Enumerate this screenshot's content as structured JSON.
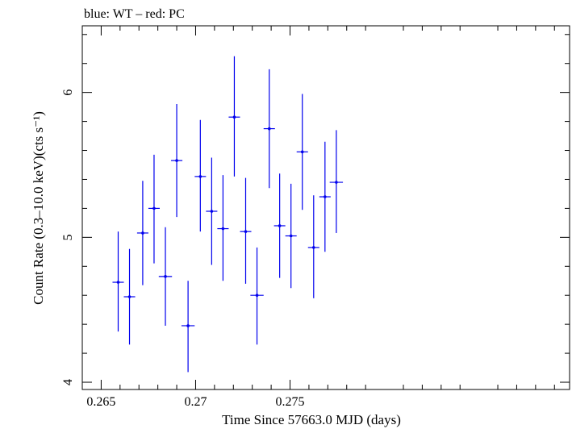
{
  "chart_data": {
    "type": "scatter",
    "title": "blue: WT – red: PC",
    "xlabel": "Time Since 57663.0 MJD (days)",
    "ylabel": "Count Rate (0.3–10.0 keV)(cts s⁻¹)",
    "xlim": [
      0.264,
      0.2898
    ],
    "ylim": [
      3.95,
      6.46
    ],
    "x_ticks": [
      0.265,
      0.27,
      0.275
    ],
    "x_tick_labels": [
      "0.265",
      "0.27",
      "0.275"
    ],
    "y_ticks": [
      4,
      5,
      6
    ],
    "y_tick_labels": [
      "4",
      "5",
      "6"
    ],
    "grid": false,
    "series": [
      {
        "name": "WT",
        "color": "#0000ee",
        "points": [
          {
            "x": 0.2659,
            "y": 4.69,
            "xerr": 0.0003,
            "ylo": 4.35,
            "yhi": 5.04
          },
          {
            "x": 0.2665,
            "y": 4.59,
            "xerr": 0.0003,
            "ylo": 4.26,
            "yhi": 4.92
          },
          {
            "x": 0.2672,
            "y": 5.03,
            "xerr": 0.0003,
            "ylo": 4.67,
            "yhi": 5.39
          },
          {
            "x": 0.2678,
            "y": 5.2,
            "xerr": 0.0003,
            "ylo": 4.82,
            "yhi": 5.57
          },
          {
            "x": 0.2684,
            "y": 4.73,
            "xerr": 0.00035,
            "ylo": 4.39,
            "yhi": 5.07
          },
          {
            "x": 0.269,
            "y": 5.53,
            "xerr": 0.0003,
            "ylo": 5.14,
            "yhi": 5.92
          },
          {
            "x": 0.2696,
            "y": 4.39,
            "xerr": 0.00035,
            "ylo": 4.07,
            "yhi": 4.7
          },
          {
            "x": 0.27025,
            "y": 5.42,
            "xerr": 0.0003,
            "ylo": 5.04,
            "yhi": 5.81
          },
          {
            "x": 0.27085,
            "y": 5.18,
            "xerr": 0.0003,
            "ylo": 4.81,
            "yhi": 5.55
          },
          {
            "x": 0.27145,
            "y": 5.06,
            "xerr": 0.0003,
            "ylo": 4.7,
            "yhi": 5.43
          },
          {
            "x": 0.27205,
            "y": 5.83,
            "xerr": 0.0003,
            "ylo": 5.42,
            "yhi": 6.25
          },
          {
            "x": 0.27265,
            "y": 5.04,
            "xerr": 0.0003,
            "ylo": 4.68,
            "yhi": 5.41
          },
          {
            "x": 0.27325,
            "y": 4.6,
            "xerr": 0.00035,
            "ylo": 4.26,
            "yhi": 4.93
          },
          {
            "x": 0.2739,
            "y": 5.75,
            "xerr": 0.0003,
            "ylo": 5.34,
            "yhi": 6.16
          },
          {
            "x": 0.27445,
            "y": 5.08,
            "xerr": 0.0003,
            "ylo": 4.72,
            "yhi": 5.44
          },
          {
            "x": 0.27505,
            "y": 5.01,
            "xerr": 0.0003,
            "ylo": 4.65,
            "yhi": 5.37
          },
          {
            "x": 0.27565,
            "y": 5.59,
            "xerr": 0.0003,
            "ylo": 5.19,
            "yhi": 5.99
          },
          {
            "x": 0.27625,
            "y": 4.93,
            "xerr": 0.0003,
            "ylo": 4.58,
            "yhi": 5.29
          },
          {
            "x": 0.27685,
            "y": 5.28,
            "xerr": 0.0003,
            "ylo": 4.9,
            "yhi": 5.66
          },
          {
            "x": 0.27745,
            "y": 5.38,
            "xerr": 0.00035,
            "ylo": 5.03,
            "yhi": 5.74
          }
        ]
      }
    ]
  }
}
